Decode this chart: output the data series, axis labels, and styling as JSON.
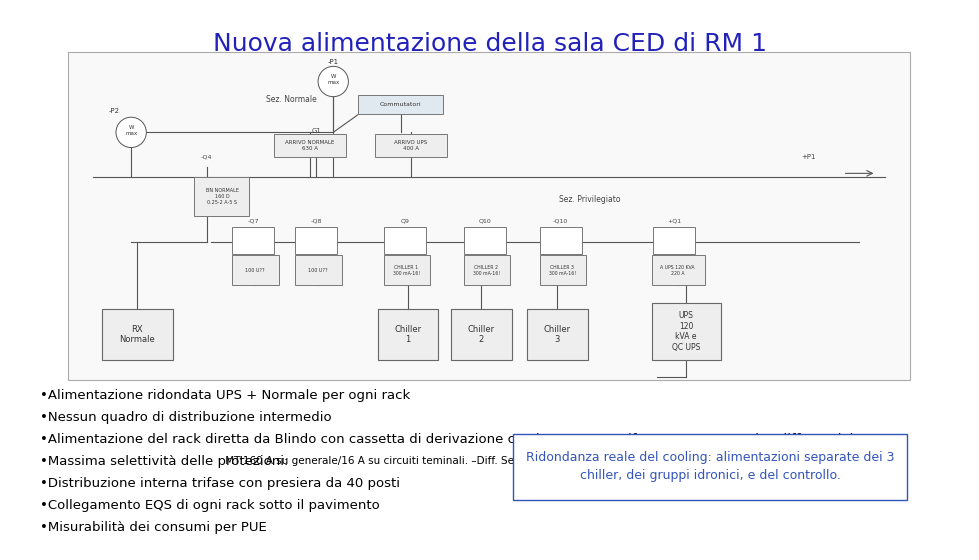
{
  "title": "Nuova alimentazione della sala CED di RM 1",
  "title_color": "#2222bb",
  "title_fontsize": 18,
  "bg_color": "#ffffff",
  "bullet_items": [
    "•Alimentazione ridondata UPS + Normale per ogni rack",
    "•Nessun quadro di distribuzione intermedio",
    "•Alimentazione del rack diretta da Blindo con cassetta di derivazione con interruttore trifase magnetotermico differenziale.",
    "•Massima selettività delle protezioni:",
    "•Distribuzione interna trifase con presiera da 40 posti",
    "•Collegamento EQS di ogni rack sotto il pavimento",
    "•Misurabilità dei consumi per PUE"
  ],
  "bullet3_suffix": " MT:160 A su generale/16 A su circuiti teminali. –Diff. Selettivo su gen/ 300 mA su circ. term.",
  "bullet_fontsize": 9.5,
  "bullet_small_fontsize": 7.5,
  "bullet_color": "#000000",
  "callout_text": "Ridondanza reale del cooling: alimentazioni separate dei 3\nchiller, dei gruppi idronici, e del controllo.",
  "callout_color": "#3355bb",
  "callout_fontsize": 9,
  "diagram_border": "#aaaaaa",
  "lc": "#555555",
  "box_ec": "#777777",
  "box_fc": "#eeeeee"
}
